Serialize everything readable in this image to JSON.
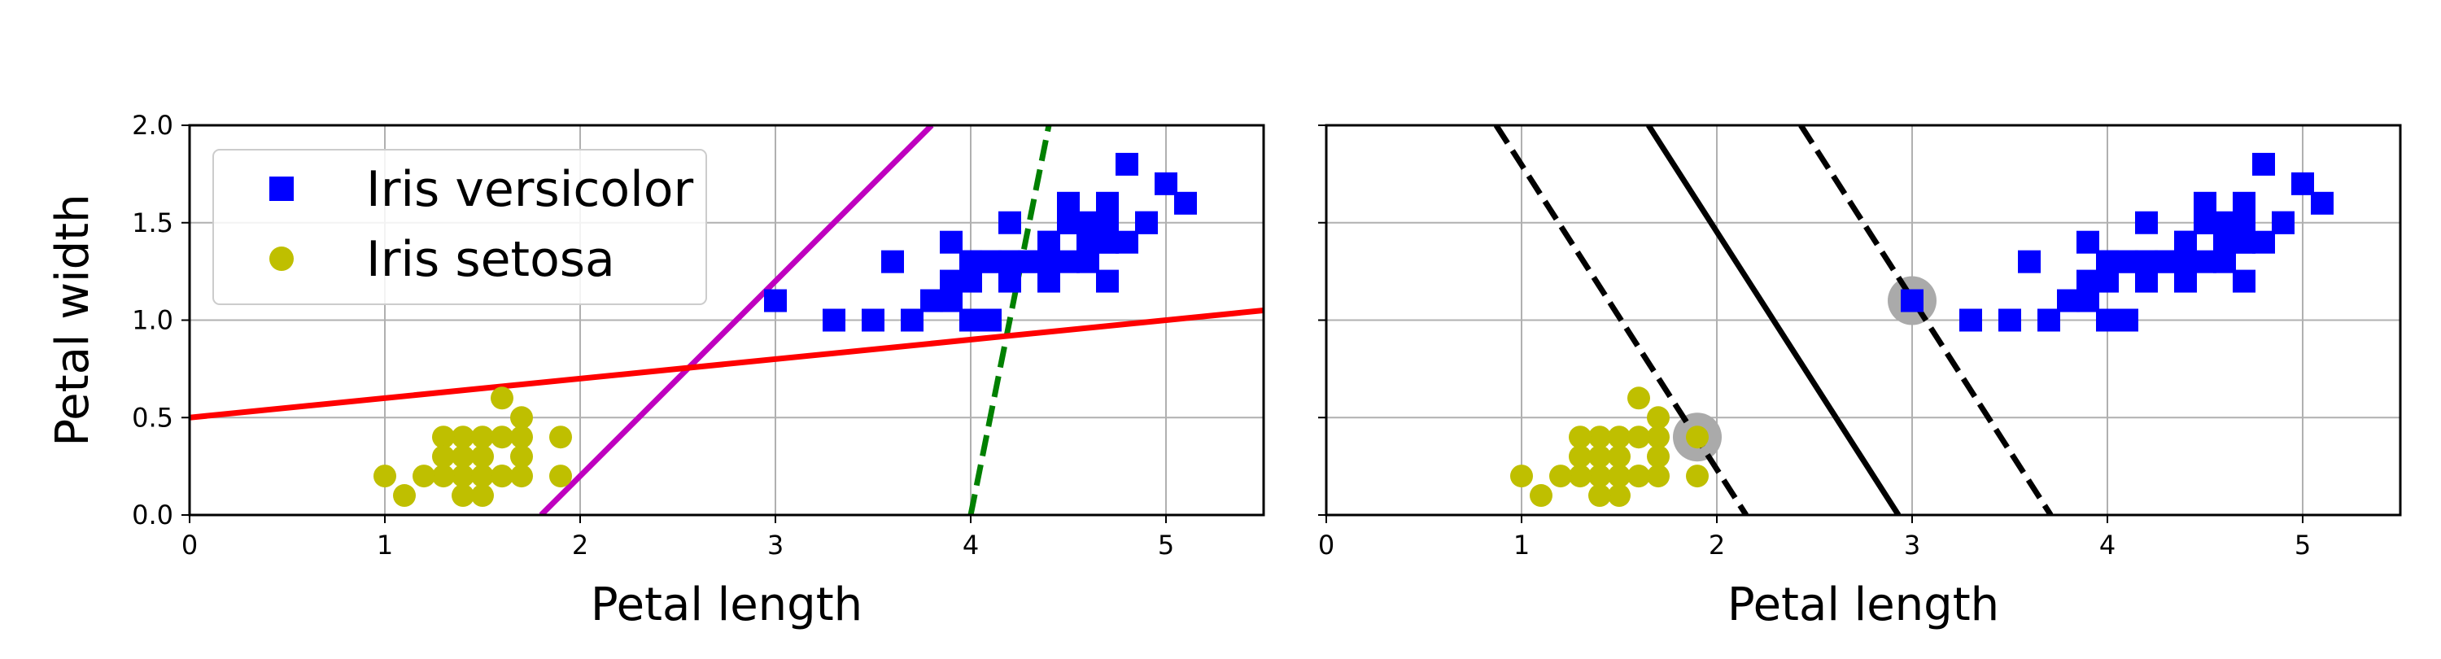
{
  "chart_data": [
    {
      "type": "scatter",
      "xlabel": "Petal length",
      "ylabel": "Petal width",
      "xlim": [
        0,
        5.5
      ],
      "ylim": [
        0,
        2.0
      ],
      "xticks": [
        "0",
        "1",
        "2",
        "3",
        "4",
        "5"
      ],
      "yticks": [
        "0.0",
        "0.5",
        "1.0",
        "1.5",
        "2.0"
      ],
      "grid": true,
      "legend": {
        "placement": "upper-left",
        "entries": [
          "Iris versicolor",
          "Iris setosa"
        ]
      },
      "series": [
        {
          "name": "Iris versicolor",
          "marker": "square",
          "color": "#0000ff",
          "points": [
            [
              4.7,
              1.4
            ],
            [
              4.5,
              1.5
            ],
            [
              4.9,
              1.5
            ],
            [
              4.0,
              1.3
            ],
            [
              4.6,
              1.5
            ],
            [
              4.5,
              1.3
            ],
            [
              4.7,
              1.6
            ],
            [
              3.3,
              1.0
            ],
            [
              4.6,
              1.3
            ],
            [
              3.9,
              1.4
            ],
            [
              3.5,
              1.0
            ],
            [
              4.2,
              1.5
            ],
            [
              4.0,
              1.0
            ],
            [
              4.7,
              1.4
            ],
            [
              3.6,
              1.3
            ],
            [
              4.4,
              1.4
            ],
            [
              4.5,
              1.5
            ],
            [
              4.1,
              1.0
            ],
            [
              4.5,
              1.5
            ],
            [
              3.9,
              1.1
            ],
            [
              4.8,
              1.8
            ],
            [
              4.0,
              1.3
            ],
            [
              4.9,
              1.5
            ],
            [
              4.7,
              1.2
            ],
            [
              4.3,
              1.3
            ],
            [
              4.4,
              1.4
            ],
            [
              4.8,
              1.4
            ],
            [
              5.0,
              1.7
            ],
            [
              4.5,
              1.5
            ],
            [
              3.5,
              1.0
            ],
            [
              3.8,
              1.1
            ],
            [
              3.7,
              1.0
            ],
            [
              3.9,
              1.2
            ],
            [
              5.1,
              1.6
            ],
            [
              4.5,
              1.5
            ],
            [
              4.5,
              1.6
            ],
            [
              4.7,
              1.5
            ],
            [
              4.4,
              1.3
            ],
            [
              4.1,
              1.3
            ],
            [
              4.0,
              1.3
            ],
            [
              4.4,
              1.2
            ],
            [
              4.6,
              1.4
            ],
            [
              4.0,
              1.2
            ],
            [
              3.3,
              1.0
            ],
            [
              4.2,
              1.3
            ],
            [
              4.2,
              1.2
            ],
            [
              4.2,
              1.3
            ],
            [
              4.3,
              1.3
            ],
            [
              3.0,
              1.1
            ],
            [
              4.1,
              1.3
            ]
          ]
        },
        {
          "name": "Iris setosa",
          "marker": "circle",
          "color": "#bfbf00",
          "points": [
            [
              1.4,
              0.2
            ],
            [
              1.3,
              0.2
            ],
            [
              1.5,
              0.2
            ],
            [
              1.7,
              0.4
            ],
            [
              1.4,
              0.3
            ],
            [
              1.5,
              0.1
            ],
            [
              1.5,
              0.2
            ],
            [
              1.6,
              0.2
            ],
            [
              1.4,
              0.1
            ],
            [
              1.1,
              0.1
            ],
            [
              1.2,
              0.2
            ],
            [
              1.4,
              0.4
            ],
            [
              1.3,
              0.4
            ],
            [
              1.7,
              0.3
            ],
            [
              1.5,
              0.3
            ],
            [
              1.7,
              0.2
            ],
            [
              1.5,
              0.4
            ],
            [
              1.0,
              0.2
            ],
            [
              1.7,
              0.5
            ],
            [
              1.9,
              0.2
            ],
            [
              1.6,
              0.4
            ],
            [
              1.6,
              0.6
            ],
            [
              1.9,
              0.4
            ],
            [
              1.6,
              0.2
            ],
            [
              1.3,
              0.3
            ]
          ]
        }
      ],
      "lines": [
        {
          "color": "#008000",
          "style": "dashed",
          "points": [
            [
              4.0,
              0.0
            ],
            [
              4.4,
              2.0
            ]
          ]
        },
        {
          "color": "#bf00bf",
          "style": "solid",
          "points": [
            [
              1.8,
              0.0
            ],
            [
              3.8,
              2.0
            ]
          ]
        },
        {
          "color": "#ff0000",
          "style": "solid",
          "points": [
            [
              0.0,
              0.5
            ],
            [
              5.5,
              1.05
            ]
          ]
        }
      ]
    },
    {
      "type": "scatter",
      "xlabel": "Petal length",
      "ylabel": "",
      "xlim": [
        0,
        5.5
      ],
      "ylim": [
        0,
        2.0
      ],
      "xticks": [
        "0",
        "1",
        "2",
        "3",
        "4",
        "5"
      ],
      "yticks": [],
      "grid": true,
      "series": [
        {
          "name": "Iris versicolor",
          "marker": "square",
          "color": "#0000ff",
          "points": [
            [
              4.7,
              1.4
            ],
            [
              4.5,
              1.5
            ],
            [
              4.9,
              1.5
            ],
            [
              4.0,
              1.3
            ],
            [
              4.6,
              1.5
            ],
            [
              4.5,
              1.3
            ],
            [
              4.7,
              1.6
            ],
            [
              3.3,
              1.0
            ],
            [
              4.6,
              1.3
            ],
            [
              3.9,
              1.4
            ],
            [
              3.5,
              1.0
            ],
            [
              4.2,
              1.5
            ],
            [
              4.0,
              1.0
            ],
            [
              4.7,
              1.4
            ],
            [
              3.6,
              1.3
            ],
            [
              4.4,
              1.4
            ],
            [
              4.5,
              1.5
            ],
            [
              4.1,
              1.0
            ],
            [
              4.5,
              1.5
            ],
            [
              3.9,
              1.1
            ],
            [
              4.8,
              1.8
            ],
            [
              4.0,
              1.3
            ],
            [
              4.9,
              1.5
            ],
            [
              4.7,
              1.2
            ],
            [
              4.3,
              1.3
            ],
            [
              4.4,
              1.4
            ],
            [
              4.8,
              1.4
            ],
            [
              5.0,
              1.7
            ],
            [
              4.5,
              1.5
            ],
            [
              3.5,
              1.0
            ],
            [
              3.8,
              1.1
            ],
            [
              3.7,
              1.0
            ],
            [
              3.9,
              1.2
            ],
            [
              5.1,
              1.6
            ],
            [
              4.5,
              1.5
            ],
            [
              4.5,
              1.6
            ],
            [
              4.7,
              1.5
            ],
            [
              4.4,
              1.3
            ],
            [
              4.1,
              1.3
            ],
            [
              4.0,
              1.3
            ],
            [
              4.4,
              1.2
            ],
            [
              4.6,
              1.4
            ],
            [
              4.0,
              1.2
            ],
            [
              3.3,
              1.0
            ],
            [
              4.2,
              1.3
            ],
            [
              4.2,
              1.2
            ],
            [
              4.2,
              1.3
            ],
            [
              4.3,
              1.3
            ],
            [
              3.0,
              1.1
            ],
            [
              4.1,
              1.3
            ]
          ]
        },
        {
          "name": "Iris setosa",
          "marker": "circle",
          "color": "#bfbf00",
          "points": [
            [
              1.4,
              0.2
            ],
            [
              1.3,
              0.2
            ],
            [
              1.5,
              0.2
            ],
            [
              1.7,
              0.4
            ],
            [
              1.4,
              0.3
            ],
            [
              1.5,
              0.1
            ],
            [
              1.5,
              0.2
            ],
            [
              1.6,
              0.2
            ],
            [
              1.4,
              0.1
            ],
            [
              1.1,
              0.1
            ],
            [
              1.2,
              0.2
            ],
            [
              1.4,
              0.4
            ],
            [
              1.3,
              0.4
            ],
            [
              1.7,
              0.3
            ],
            [
              1.5,
              0.3
            ],
            [
              1.7,
              0.2
            ],
            [
              1.5,
              0.4
            ],
            [
              1.0,
              0.2
            ],
            [
              1.7,
              0.5
            ],
            [
              1.9,
              0.2
            ],
            [
              1.6,
              0.4
            ],
            [
              1.6,
              0.6
            ],
            [
              1.9,
              0.4
            ],
            [
              1.6,
              0.2
            ],
            [
              1.3,
              0.3
            ]
          ]
        }
      ],
      "support_vectors": {
        "color": "#aaaaaa",
        "points": [
          [
            3.0,
            1.1
          ],
          [
            1.9,
            0.4
          ]
        ]
      },
      "lines": [
        {
          "color": "#000000",
          "style": "solid",
          "points": [
            [
              1.65,
              2.0
            ],
            [
              2.93,
              0.0
            ]
          ]
        },
        {
          "color": "#000000",
          "style": "dashed",
          "points": [
            [
              0.87,
              2.0
            ],
            [
              2.15,
              0.0
            ]
          ]
        },
        {
          "color": "#000000",
          "style": "dashed",
          "points": [
            [
              2.43,
              2.0
            ],
            [
              3.71,
              0.0
            ]
          ]
        }
      ]
    }
  ]
}
